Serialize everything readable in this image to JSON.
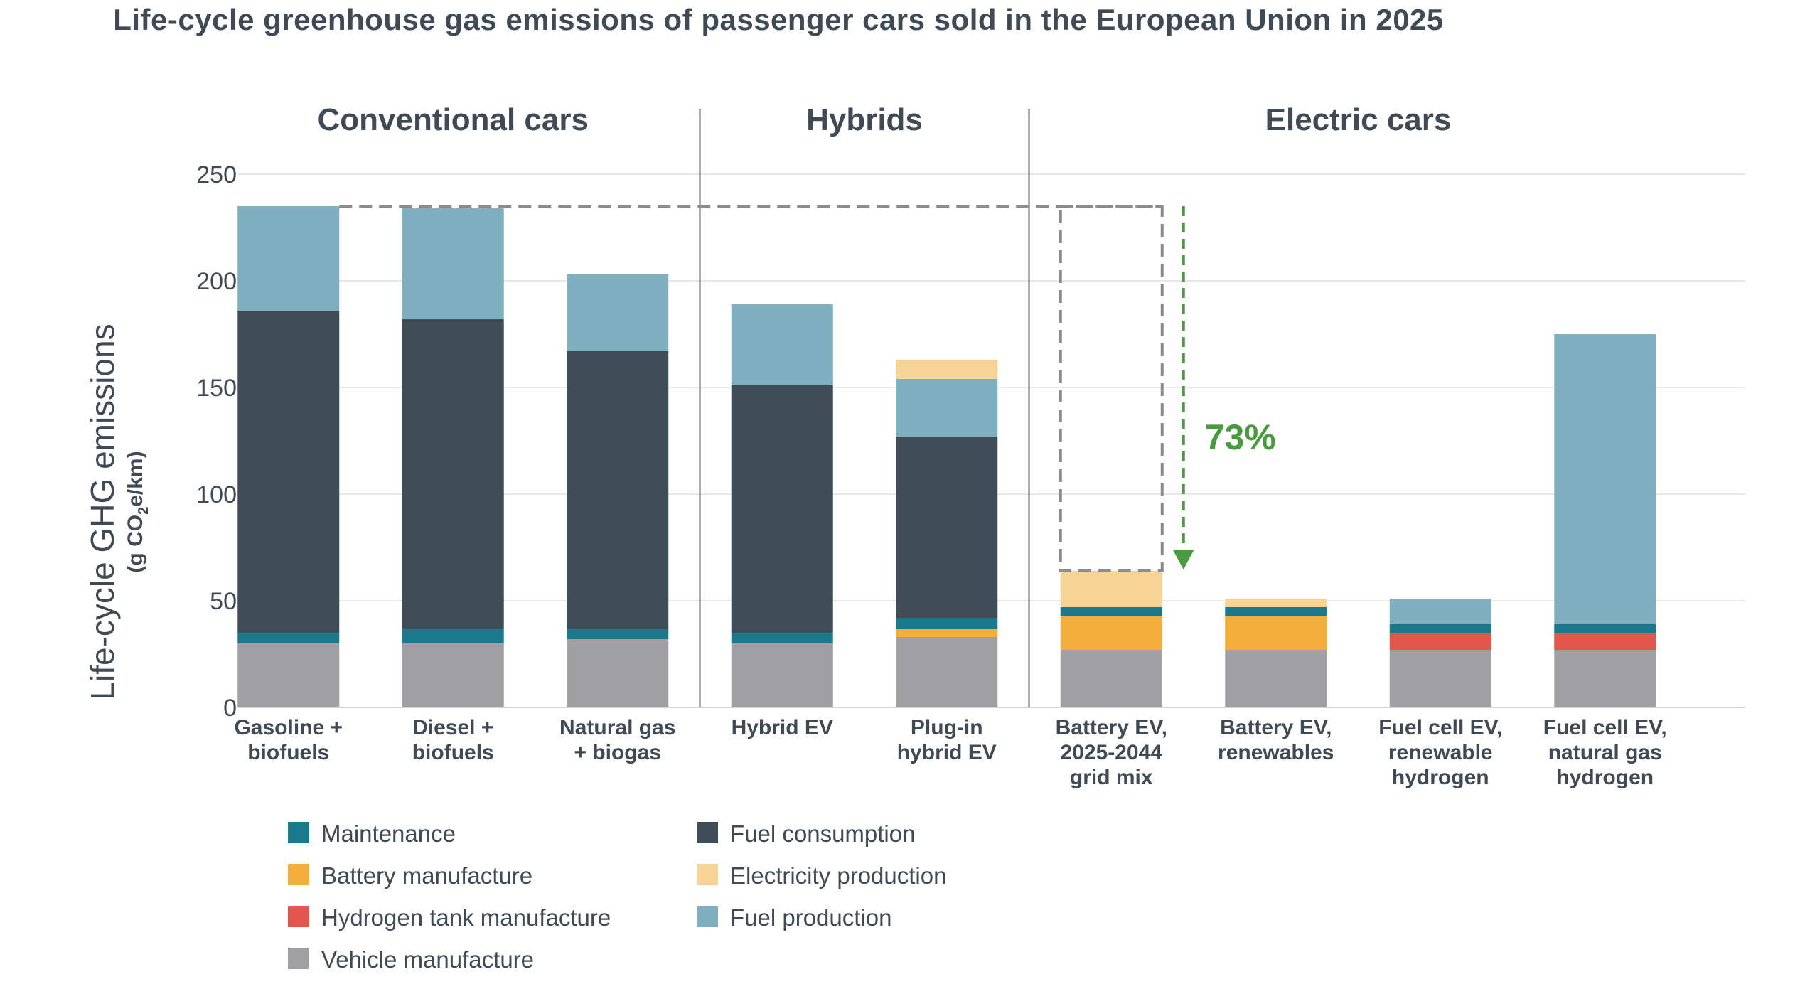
{
  "chart_data": {
    "type": "bar",
    "stacked": true,
    "title": "Life-cycle greenhouse gas emissions of passenger cars sold in the European Union in 2025",
    "ylabel": "Life-cycle GHG emissions",
    "yunit_prefix": "(g CO",
    "yunit_sub": "2",
    "yunit_suffix": "e/km)",
    "ylim": [
      0,
      250
    ],
    "yticks": [
      0,
      50,
      100,
      150,
      200,
      250
    ],
    "grid": true,
    "legend_position": "bottom-left",
    "groups": [
      {
        "label": "Conventional cars",
        "start": 0,
        "end": 2
      },
      {
        "label": "Hybrids",
        "start": 3,
        "end": 4
      },
      {
        "label": "Electric cars",
        "start": 5,
        "end": 8
      }
    ],
    "categories": [
      [
        "Gasoline +",
        "biofuels"
      ],
      [
        "Diesel +",
        "biofuels"
      ],
      [
        "Natural gas",
        "+ biogas"
      ],
      [
        "Hybrid EV"
      ],
      [
        "Plug-in",
        "hybrid EV"
      ],
      [
        "Battery EV,",
        "2025-2044",
        "grid mix"
      ],
      [
        "Battery EV,",
        "renewables"
      ],
      [
        "Fuel cell EV,",
        "renewable",
        "hydrogen"
      ],
      [
        "Fuel cell EV,",
        "natural gas",
        "hydrogen"
      ]
    ],
    "series": [
      {
        "name": "Vehicle manufacture",
        "color": "#a0a0a3",
        "values": [
          30,
          30,
          32,
          30,
          33,
          27,
          27,
          27,
          27
        ]
      },
      {
        "name": "Hydrogen tank manufacture",
        "color": "#e2574c",
        "values": [
          0,
          0,
          0,
          0,
          0,
          0,
          0,
          8,
          8
        ]
      },
      {
        "name": "Battery manufacture",
        "color": "#f2ad3b",
        "values": [
          0,
          0,
          0,
          0,
          4,
          16,
          16,
          0,
          0
        ]
      },
      {
        "name": "Maintenance",
        "color": "#1a7a8c",
        "values": [
          5,
          7,
          5,
          5,
          5,
          4,
          4,
          4,
          4
        ]
      },
      {
        "name": "Fuel consumption",
        "color": "#404c56",
        "values": [
          151,
          145,
          130,
          116,
          85,
          0,
          0,
          0,
          0
        ]
      },
      {
        "name": "Fuel production",
        "color": "#80afbf",
        "values": [
          49,
          52,
          36,
          38,
          27,
          0,
          0,
          12,
          136
        ]
      },
      {
        "name": "Electricity production",
        "color": "#f8d396",
        "values": [
          0,
          0,
          0,
          0,
          9,
          17,
          4,
          0,
          0
        ]
      }
    ],
    "legend_order": [
      "Maintenance",
      "Fuel consumption",
      "Battery manufacture",
      "Electricity production",
      "Hydrogen tank manufacture",
      "Fuel production",
      "Vehicle manufacture"
    ],
    "annotation": {
      "text": "73%",
      "from_value": 235,
      "to_value": 64,
      "color": "#4a9a3f"
    }
  }
}
